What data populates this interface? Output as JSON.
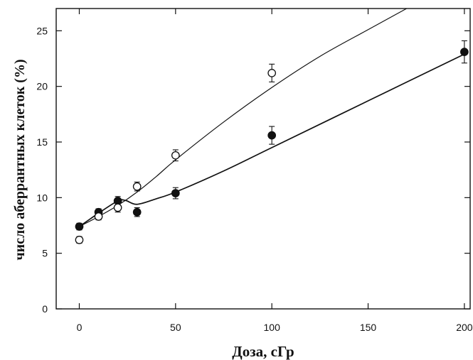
{
  "chart_data": {
    "type": "scatter",
    "title": "",
    "xlabel": "Доза, сГр",
    "ylabel": "число аберрантных клеток (%)",
    "xlim": [
      -12,
      203
    ],
    "ylim": [
      0,
      27
    ],
    "xticks": [
      0,
      50,
      100,
      150,
      200
    ],
    "yticks": [
      0,
      5,
      10,
      15,
      20,
      25
    ],
    "xtick_labels": [
      "0",
      "50",
      "100",
      "150",
      "200"
    ],
    "ytick_labels": [
      "0",
      "5",
      "10",
      "15",
      "20",
      "25"
    ],
    "grid": false,
    "series": [
      {
        "marker": "filled-circle",
        "color": "#111111",
        "x": [
          0,
          10,
          20,
          30,
          50,
          100,
          200
        ],
        "y": [
          7.4,
          8.7,
          9.7,
          8.7,
          10.4,
          15.6,
          23.1
        ],
        "err": [
          0.3,
          0.3,
          0.4,
          0.4,
          0.5,
          0.8,
          1.0
        ],
        "fit_curve": {
          "x": [
            0,
            10,
            20,
            24,
            30,
            40,
            50,
            75,
            100,
            150,
            200
          ],
          "y": [
            7.4,
            8.6,
            9.7,
            9.75,
            9.4,
            9.9,
            10.5,
            12.4,
            14.5,
            18.7,
            22.9
          ]
        }
      },
      {
        "marker": "open-circle",
        "color": "#111111",
        "x": [
          0,
          10,
          20,
          30,
          50,
          100
        ],
        "y": [
          6.2,
          8.3,
          9.1,
          11.0,
          13.8,
          21.2
        ],
        "err": [
          0.3,
          0.3,
          0.4,
          0.4,
          0.5,
          0.8
        ],
        "fit_curve": {
          "x": [
            0,
            10,
            20,
            30,
            40,
            50,
            75,
            100,
            125,
            150,
            170
          ],
          "y": [
            7.4,
            8.3,
            9.3,
            10.5,
            11.9,
            13.4,
            16.8,
            19.9,
            22.7,
            25.1,
            27.0
          ]
        }
      }
    ]
  }
}
